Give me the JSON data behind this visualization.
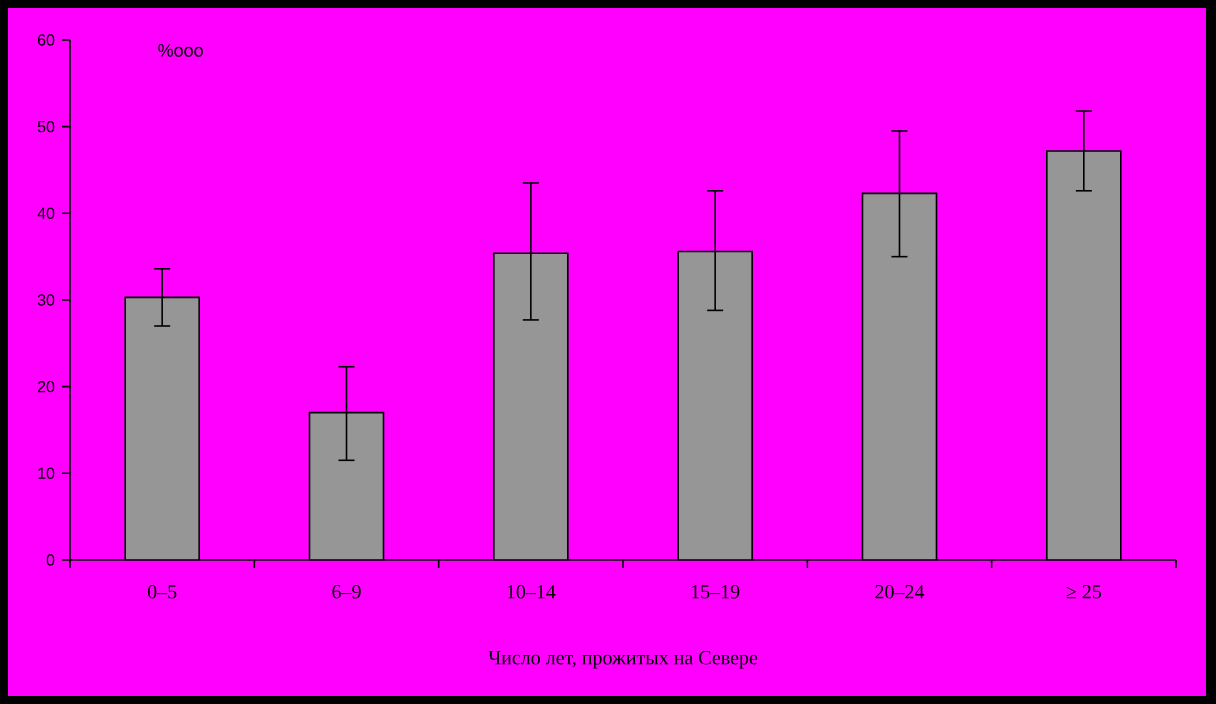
{
  "chart_data": {
    "type": "bar",
    "xlabel": "Число лет, прожитых на Севере",
    "ylabel": "%ooo",
    "categories": [
      "0–5",
      "6–9",
      "10–14",
      "15–19",
      "20–24",
      "≥ 25"
    ],
    "values": [
      30.3,
      17,
      35.4,
      35.6,
      42.3,
      47.2
    ],
    "errors": [
      [
        27,
        33.6
      ],
      [
        11.5,
        22.3
      ],
      [
        27.7,
        43.5
      ],
      [
        28.8,
        42.6
      ],
      [
        35,
        49.5
      ],
      [
        42.6,
        51.8
      ]
    ],
    "color": "#969696",
    "ylim": [
      0,
      60
    ],
    "yticks": [
      0,
      10,
      20,
      30,
      40,
      50,
      60
    ],
    "grid": false
  }
}
